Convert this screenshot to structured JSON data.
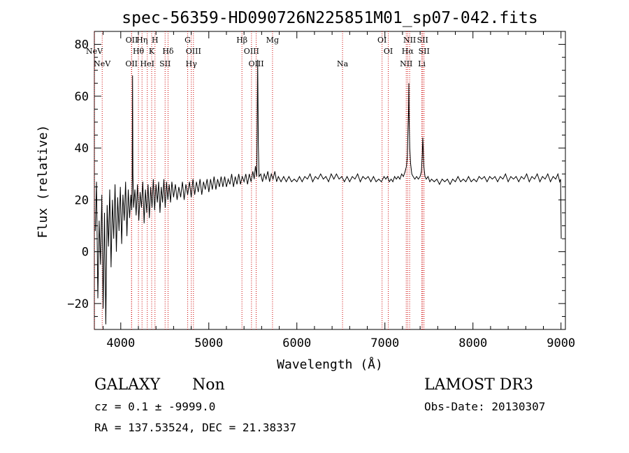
{
  "chart_data": {
    "type": "line",
    "title": "spec-56359-HD090726N225851M01_sp07-042.fits",
    "xlabel": "Wavelength (Å)",
    "ylabel": "Flux (relative)",
    "xlim": [
      3700,
      9050
    ],
    "ylim": [
      -30,
      85
    ],
    "xticks": [
      4000,
      5000,
      6000,
      7000,
      8000,
      9000
    ],
    "yticks": [
      -20,
      0,
      20,
      40,
      60,
      80
    ],
    "line_color": "#000000",
    "marker_color": "#cc0000",
    "series": [
      {
        "name": "flux",
        "points": [
          [
            3710,
            8
          ],
          [
            3725,
            27
          ],
          [
            3740,
            -18
          ],
          [
            3755,
            12
          ],
          [
            3770,
            -5
          ],
          [
            3785,
            22
          ],
          [
            3800,
            -22
          ],
          [
            3815,
            15
          ],
          [
            3830,
            -28
          ],
          [
            3845,
            18
          ],
          [
            3860,
            2
          ],
          [
            3875,
            24
          ],
          [
            3890,
            -6
          ],
          [
            3905,
            20
          ],
          [
            3920,
            5
          ],
          [
            3935,
            26
          ],
          [
            3950,
            0
          ],
          [
            3965,
            21
          ],
          [
            3980,
            8
          ],
          [
            3995,
            25
          ],
          [
            4010,
            3
          ],
          [
            4025,
            22
          ],
          [
            4040,
            12
          ],
          [
            4055,
            27
          ],
          [
            4070,
            6
          ],
          [
            4085,
            24
          ],
          [
            4100,
            13
          ],
          [
            4115,
            22
          ],
          [
            4125,
            16
          ],
          [
            4130,
            28
          ],
          [
            4134,
            68
          ],
          [
            4138,
            30
          ],
          [
            4145,
            17
          ],
          [
            4160,
            24
          ],
          [
            4175,
            14
          ],
          [
            4190,
            26
          ],
          [
            4205,
            12
          ],
          [
            4220,
            23
          ],
          [
            4235,
            17
          ],
          [
            4250,
            27
          ],
          [
            4265,
            11
          ],
          [
            4280,
            24
          ],
          [
            4295,
            15
          ],
          [
            4310,
            26
          ],
          [
            4325,
            13
          ],
          [
            4340,
            25
          ],
          [
            4355,
            17
          ],
          [
            4370,
            28
          ],
          [
            4385,
            16
          ],
          [
            4400,
            26
          ],
          [
            4415,
            19
          ],
          [
            4430,
            27
          ],
          [
            4445,
            15
          ],
          [
            4460,
            25
          ],
          [
            4475,
            19
          ],
          [
            4490,
            28
          ],
          [
            4505,
            17
          ],
          [
            4520,
            27
          ],
          [
            4535,
            20
          ],
          [
            4550,
            26
          ],
          [
            4565,
            19
          ],
          [
            4580,
            27
          ],
          [
            4600,
            21
          ],
          [
            4620,
            26
          ],
          [
            4640,
            20
          ],
          [
            4660,
            25
          ],
          [
            4680,
            21
          ],
          [
            4700,
            27
          ],
          [
            4720,
            20
          ],
          [
            4740,
            26
          ],
          [
            4760,
            22
          ],
          [
            4780,
            27
          ],
          [
            4800,
            21
          ],
          [
            4820,
            28
          ],
          [
            4840,
            22
          ],
          [
            4860,
            27
          ],
          [
            4880,
            23
          ],
          [
            4900,
            28
          ],
          [
            4920,
            22
          ],
          [
            4940,
            27
          ],
          [
            4960,
            24
          ],
          [
            4980,
            28
          ],
          [
            5000,
            23
          ],
          [
            5020,
            28
          ],
          [
            5040,
            24
          ],
          [
            5060,
            29
          ],
          [
            5080,
            24
          ],
          [
            5100,
            28
          ],
          [
            5120,
            25
          ],
          [
            5140,
            29
          ],
          [
            5160,
            25
          ],
          [
            5180,
            29
          ],
          [
            5200,
            25
          ],
          [
            5220,
            28
          ],
          [
            5240,
            26
          ],
          [
            5260,
            30
          ],
          [
            5280,
            25
          ],
          [
            5300,
            29
          ],
          [
            5320,
            26
          ],
          [
            5340,
            30
          ],
          [
            5360,
            26
          ],
          [
            5380,
            29
          ],
          [
            5400,
            27
          ],
          [
            5420,
            30
          ],
          [
            5440,
            26
          ],
          [
            5460,
            30
          ],
          [
            5480,
            27
          ],
          [
            5500,
            31
          ],
          [
            5515,
            28
          ],
          [
            5530,
            33
          ],
          [
            5545,
            29
          ],
          [
            5555,
            74
          ],
          [
            5562,
            42
          ],
          [
            5570,
            29
          ],
          [
            5590,
            30
          ],
          [
            5610,
            27
          ],
          [
            5630,
            30
          ],
          [
            5650,
            28
          ],
          [
            5670,
            31
          ],
          [
            5690,
            27
          ],
          [
            5710,
            30
          ],
          [
            5730,
            28
          ],
          [
            5750,
            31
          ],
          [
            5770,
            27
          ],
          [
            5790,
            29
          ],
          [
            5820,
            27
          ],
          [
            5850,
            29
          ],
          [
            5880,
            27
          ],
          [
            5910,
            29
          ],
          [
            5940,
            27
          ],
          [
            5970,
            28
          ],
          [
            6000,
            27
          ],
          [
            6030,
            29
          ],
          [
            6060,
            27
          ],
          [
            6090,
            29
          ],
          [
            6120,
            28
          ],
          [
            6150,
            30
          ],
          [
            6180,
            27
          ],
          [
            6210,
            29
          ],
          [
            6240,
            28
          ],
          [
            6270,
            30
          ],
          [
            6300,
            28
          ],
          [
            6330,
            29
          ],
          [
            6360,
            27
          ],
          [
            6390,
            30
          ],
          [
            6420,
            28
          ],
          [
            6450,
            30
          ],
          [
            6480,
            28
          ],
          [
            6510,
            29
          ],
          [
            6540,
            27
          ],
          [
            6570,
            29
          ],
          [
            6600,
            27
          ],
          [
            6630,
            29
          ],
          [
            6660,
            28
          ],
          [
            6690,
            30
          ],
          [
            6720,
            27
          ],
          [
            6750,
            29
          ],
          [
            6780,
            28
          ],
          [
            6810,
            29
          ],
          [
            6840,
            27
          ],
          [
            6870,
            29
          ],
          [
            6900,
            27
          ],
          [
            6930,
            28
          ],
          [
            6960,
            27
          ],
          [
            6990,
            29
          ],
          [
            7010,
            28
          ],
          [
            7030,
            29
          ],
          [
            7050,
            27
          ],
          [
            7070,
            28
          ],
          [
            7090,
            27
          ],
          [
            7110,
            29
          ],
          [
            7130,
            28
          ],
          [
            7150,
            29
          ],
          [
            7170,
            28
          ],
          [
            7190,
            30
          ],
          [
            7210,
            29
          ],
          [
            7230,
            31
          ],
          [
            7245,
            33
          ],
          [
            7255,
            37
          ],
          [
            7262,
            46
          ],
          [
            7268,
            54
          ],
          [
            7272,
            65
          ],
          [
            7276,
            50
          ],
          [
            7282,
            40
          ],
          [
            7292,
            34
          ],
          [
            7305,
            30
          ],
          [
            7320,
            29
          ],
          [
            7340,
            28
          ],
          [
            7360,
            29
          ],
          [
            7380,
            28
          ],
          [
            7400,
            29
          ],
          [
            7415,
            31
          ],
          [
            7425,
            38
          ],
          [
            7430,
            44
          ],
          [
            7435,
            40
          ],
          [
            7442,
            33
          ],
          [
            7455,
            29
          ],
          [
            7470,
            28
          ],
          [
            7490,
            29
          ],
          [
            7510,
            27
          ],
          [
            7530,
            28
          ],
          [
            7560,
            27
          ],
          [
            7590,
            28
          ],
          [
            7620,
            26
          ],
          [
            7650,
            28
          ],
          [
            7680,
            27
          ],
          [
            7710,
            28
          ],
          [
            7740,
            26
          ],
          [
            7770,
            28
          ],
          [
            7800,
            27
          ],
          [
            7830,
            29
          ],
          [
            7860,
            27
          ],
          [
            7890,
            28
          ],
          [
            7920,
            27
          ],
          [
            7950,
            29
          ],
          [
            7980,
            27
          ],
          [
            8010,
            28
          ],
          [
            8040,
            27
          ],
          [
            8070,
            29
          ],
          [
            8100,
            28
          ],
          [
            8130,
            29
          ],
          [
            8160,
            27
          ],
          [
            8190,
            29
          ],
          [
            8220,
            28
          ],
          [
            8250,
            29
          ],
          [
            8280,
            27
          ],
          [
            8310,
            29
          ],
          [
            8340,
            28
          ],
          [
            8370,
            30
          ],
          [
            8400,
            27
          ],
          [
            8430,
            29
          ],
          [
            8460,
            28
          ],
          [
            8490,
            29
          ],
          [
            8520,
            27
          ],
          [
            8550,
            29
          ],
          [
            8580,
            28
          ],
          [
            8610,
            30
          ],
          [
            8640,
            27
          ],
          [
            8670,
            29
          ],
          [
            8700,
            28
          ],
          [
            8730,
            30
          ],
          [
            8760,
            27
          ],
          [
            8790,
            29
          ],
          [
            8820,
            28
          ],
          [
            8850,
            30
          ],
          [
            8880,
            27
          ],
          [
            8910,
            29
          ],
          [
            8940,
            28
          ],
          [
            8965,
            30
          ],
          [
            8985,
            27
          ],
          [
            8995,
            28
          ],
          [
            9002,
            5
          ]
        ]
      }
    ],
    "line_markers": [
      {
        "label": "NeV",
        "wavelength": 3426,
        "row": 2
      },
      {
        "label": "NeV",
        "wavelength": 3346,
        "row": 1
      },
      {
        "label": "OII",
        "wavelength": 3727,
        "row": 2
      },
      {
        "label": "OII",
        "wavelength": 3729,
        "row": 0
      },
      {
        "label": "Hθ",
        "wavelength": 3798,
        "row": 1
      },
      {
        "label": "Hη",
        "wavelength": 3835,
        "row": 0
      },
      {
        "label": "HeI",
        "wavelength": 3889,
        "row": 2
      },
      {
        "label": "K",
        "wavelength": 3934,
        "row": 1
      },
      {
        "label": "H",
        "wavelength": 3968,
        "row": 0
      },
      {
        "label": "Hδ",
        "wavelength": 4102,
        "row": 1
      },
      {
        "label": "SII",
        "wavelength": 4072,
        "row": 2
      },
      {
        "label": "G",
        "wavelength": 4304,
        "row": 0
      },
      {
        "label": "OIII",
        "wavelength": 4363,
        "row": 1
      },
      {
        "label": "Hγ",
        "wavelength": 4341,
        "row": 2
      },
      {
        "label": "Hβ",
        "wavelength": 4861,
        "row": 0
      },
      {
        "label": "OIII",
        "wavelength": 4959,
        "row": 1
      },
      {
        "label": "OIII",
        "wavelength": 5007,
        "row": 2
      },
      {
        "label": "Mg",
        "wavelength": 5175,
        "row": 0
      },
      {
        "label": "Na",
        "wavelength": 5894,
        "row": 2
      },
      {
        "label": "OI",
        "wavelength": 6300,
        "row": 0
      },
      {
        "label": "OI",
        "wavelength": 6364,
        "row": 1
      },
      {
        "label": "NII",
        "wavelength": 6548,
        "row": 2
      },
      {
        "label": "NII",
        "wavelength": 6583,
        "row": 0
      },
      {
        "label": "Hα",
        "wavelength": 6563,
        "row": 1
      },
      {
        "label": "SII",
        "wavelength": 6717,
        "row": 0
      },
      {
        "label": "SII",
        "wavelength": 6731,
        "row": 1
      },
      {
        "label": "Li",
        "wavelength": 6708,
        "row": 2
      }
    ],
    "redshift_factor": 1.106
  },
  "info": {
    "class_label": "GALAXY",
    "subclass_label": "Non",
    "survey": "LAMOST DR3",
    "cz_line": "cz = 0.1 ± -9999.0",
    "obs_date": "Obs-Date: 20130307",
    "coords": "RA = 137.53524, DEC =  21.38337"
  }
}
